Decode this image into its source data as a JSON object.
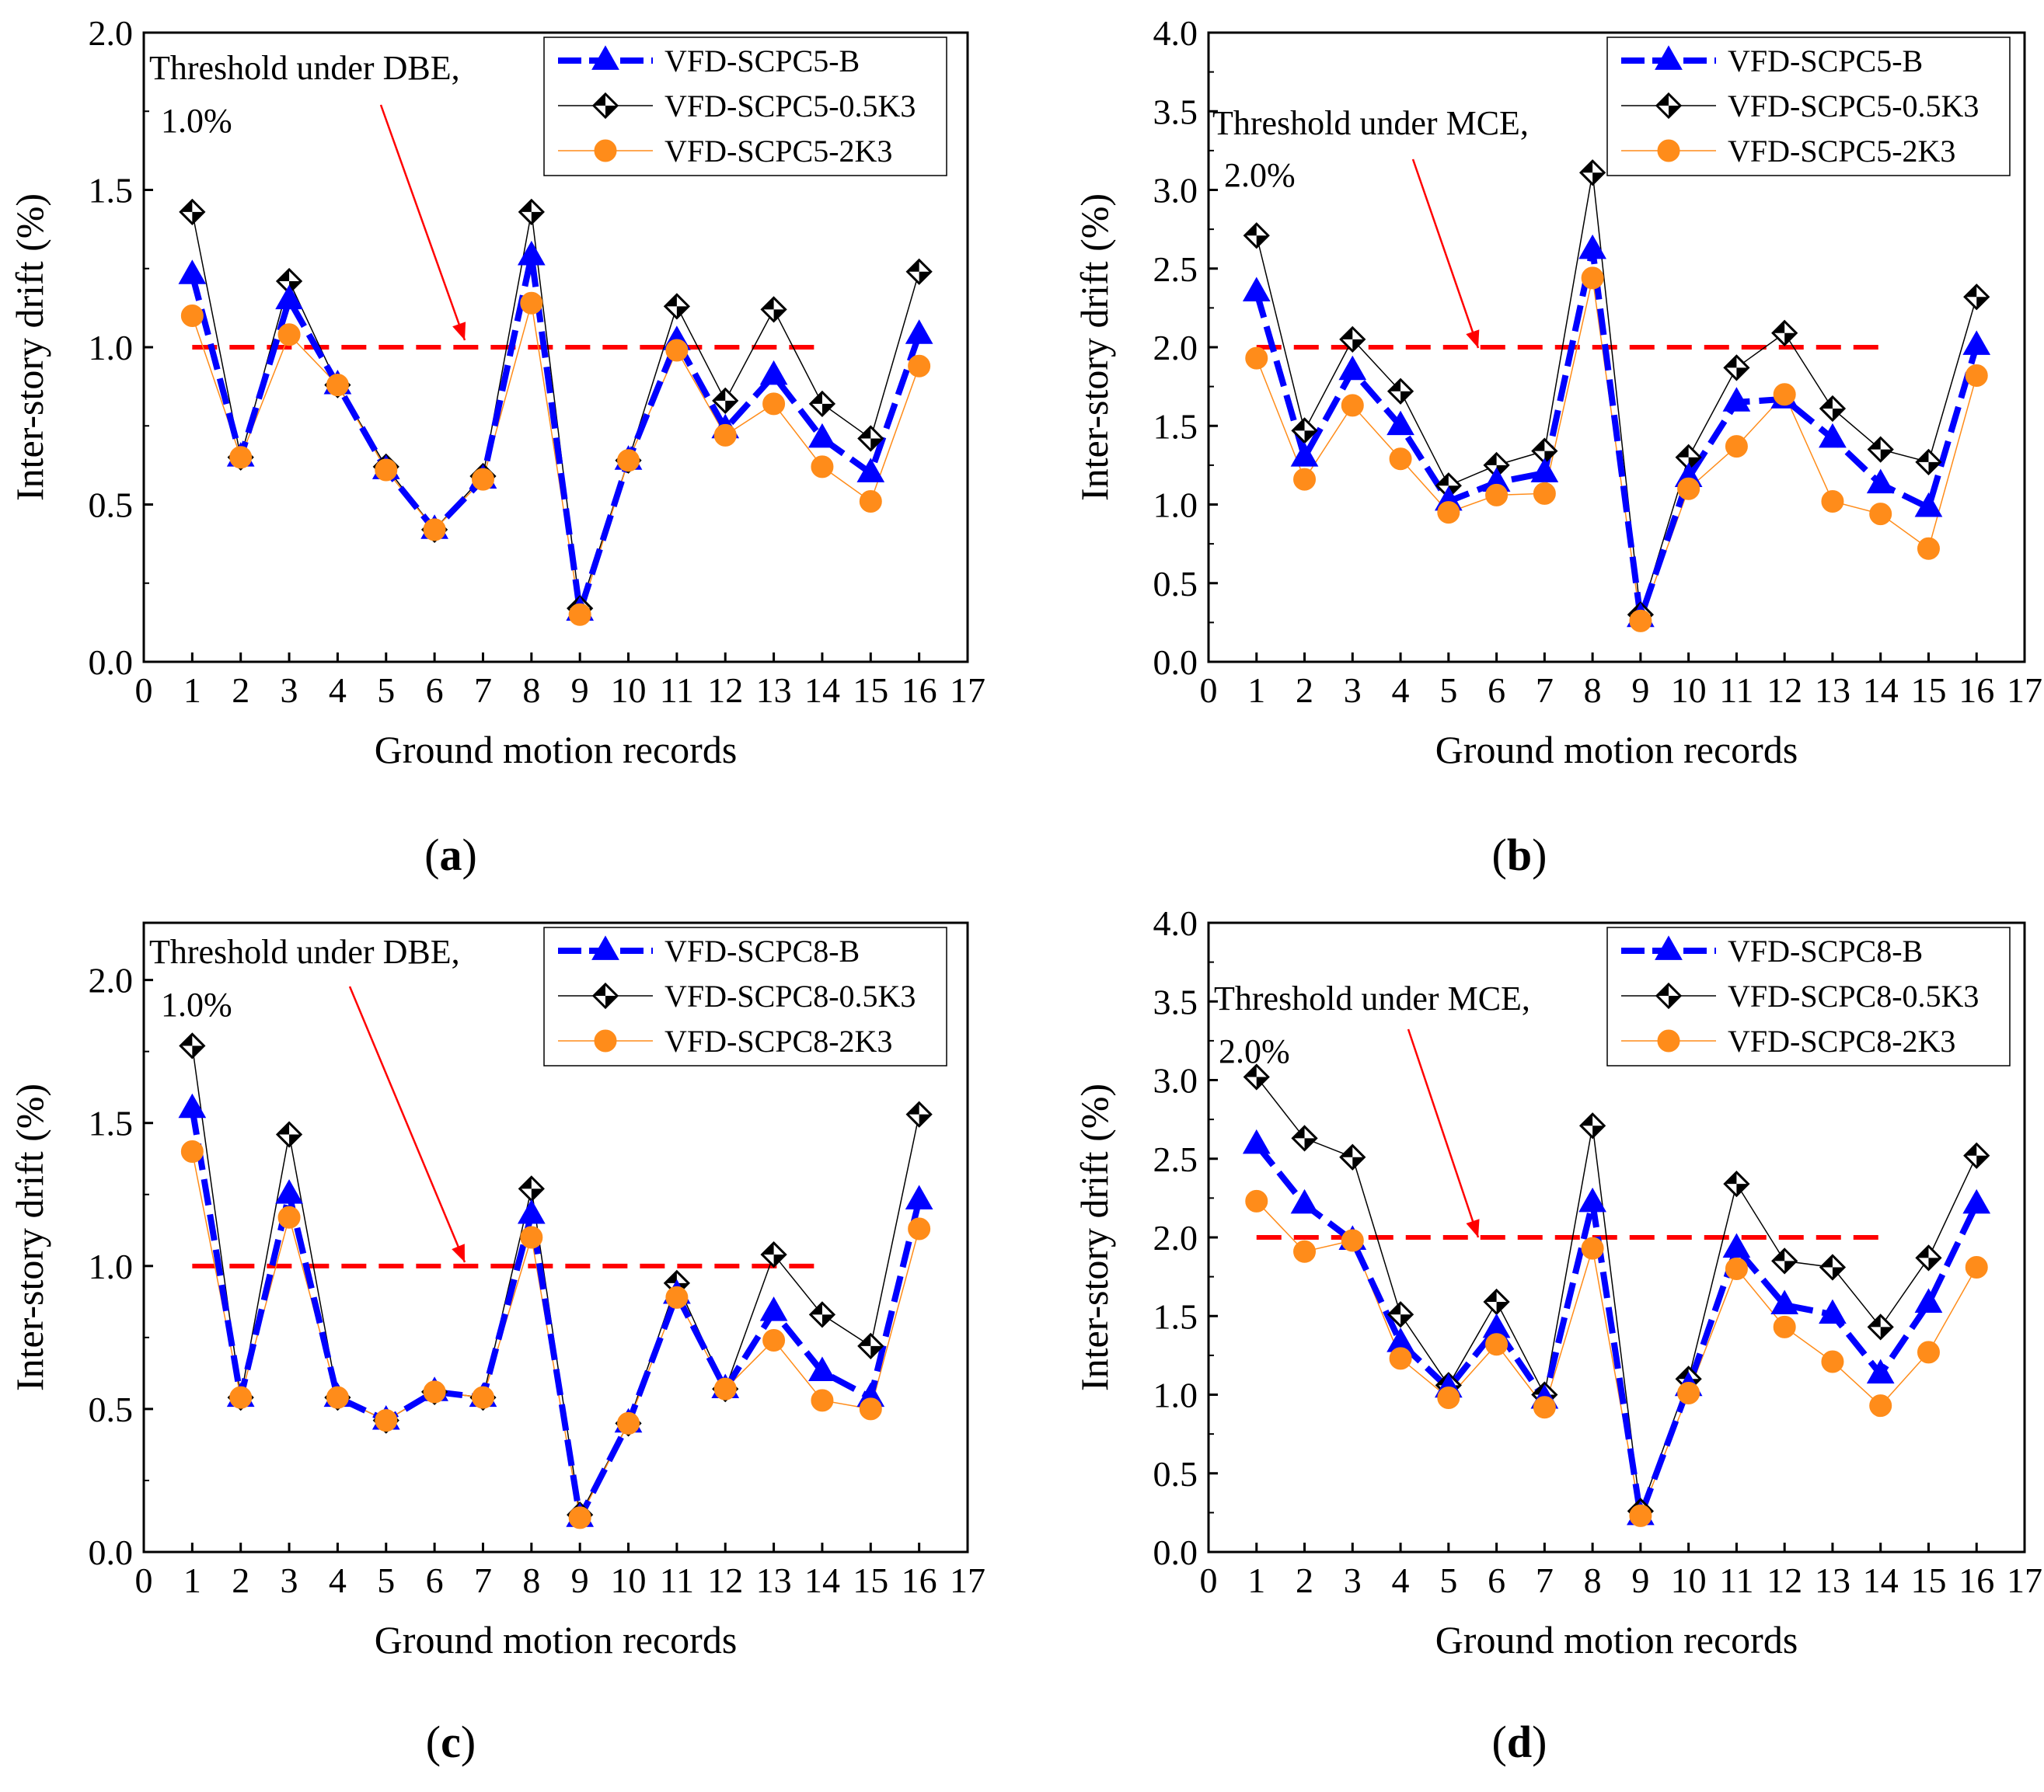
{
  "figure": {
    "panels": [
      {
        "id": "a",
        "label_open": "(",
        "label_letter": "a",
        "label_close": ")"
      },
      {
        "id": "b",
        "label_open": "(",
        "label_letter": "b",
        "label_close": ")"
      },
      {
        "id": "c",
        "label_open": "(",
        "label_letter": "c",
        "label_close": ")"
      },
      {
        "id": "d",
        "label_open": "(",
        "label_letter": "d",
        "label_close": ")"
      }
    ]
  },
  "colors": {
    "series_b": "#0000ff",
    "series_05k3": "#000000",
    "series_2k3": "#ff8c1a",
    "threshold": "#ff0000",
    "arrow": "#ff0000"
  },
  "chart_data": [
    {
      "type": "line",
      "xlabel": "Ground motion records",
      "ylabel": "Inter-story drift (%)",
      "xlim": [
        0,
        17
      ],
      "ylim": [
        0,
        2.0
      ],
      "xticks": [
        "0",
        "1",
        "2",
        "3",
        "4",
        "5",
        "6",
        "7",
        "8",
        "9",
        "10",
        "11",
        "12",
        "13",
        "14",
        "15",
        "16",
        "17"
      ],
      "yticks": [
        "0.0",
        "0.5",
        "1.0",
        "1.5",
        "2.0"
      ],
      "ytick_values": [
        0,
        0.5,
        1.0,
        1.5,
        2.0
      ],
      "x": [
        1,
        2,
        3,
        4,
        5,
        6,
        7,
        8,
        9,
        10,
        11,
        12,
        13,
        14,
        15,
        16
      ],
      "threshold": {
        "value": 1.0,
        "x_range": [
          1,
          14
        ],
        "text_line1": "Threshold under DBE,",
        "text_line2": "1.0%"
      },
      "legend_position": "top-right",
      "series": [
        {
          "name": "VFD-SCPC5-B",
          "marker": "triangle",
          "values": [
            1.23,
            0.65,
            1.15,
            0.88,
            0.61,
            0.42,
            0.58,
            1.29,
            0.16,
            0.64,
            1.02,
            0.74,
            0.91,
            0.71,
            0.6,
            1.04
          ]
        },
        {
          "name": "VFD-SCPC5-0.5K3",
          "marker": "diamond",
          "values": [
            1.43,
            0.65,
            1.21,
            0.88,
            0.62,
            0.42,
            0.59,
            1.43,
            0.17,
            0.64,
            1.13,
            0.83,
            1.12,
            0.82,
            0.71,
            1.24
          ]
        },
        {
          "name": "VFD-SCPC5-2K3",
          "marker": "circle",
          "values": [
            1.1,
            0.65,
            1.04,
            0.88,
            0.61,
            0.42,
            0.58,
            1.14,
            0.15,
            0.64,
            0.99,
            0.72,
            0.82,
            0.62,
            0.51,
            0.94
          ]
        }
      ]
    },
    {
      "type": "line",
      "xlabel": "Ground motion records",
      "ylabel": "Inter-story drift (%)",
      "xlim": [
        0,
        17
      ],
      "ylim": [
        0,
        4.0
      ],
      "xticks": [
        "0",
        "1",
        "2",
        "3",
        "4",
        "5",
        "6",
        "7",
        "8",
        "9",
        "10",
        "11",
        "12",
        "13",
        "14",
        "15",
        "16",
        "17"
      ],
      "yticks": [
        "0.0",
        "0.5",
        "1.0",
        "1.5",
        "2.0",
        "2.5",
        "3.0",
        "3.5",
        "4.0"
      ],
      "ytick_values": [
        0,
        0.5,
        1.0,
        1.5,
        2.0,
        2.5,
        3.0,
        3.5,
        4.0
      ],
      "x": [
        1,
        2,
        3,
        4,
        5,
        6,
        7,
        8,
        9,
        10,
        11,
        12,
        13,
        14,
        15,
        16
      ],
      "threshold": {
        "value": 2.0,
        "x_range": [
          1,
          14
        ],
        "text_line1": "Threshold under MCE,",
        "text_line2": "2.0%"
      },
      "legend_position": "top-right",
      "series": [
        {
          "name": "VFD-SCPC5-B",
          "marker": "triangle",
          "values": [
            2.35,
            1.3,
            1.85,
            1.5,
            1.02,
            1.14,
            1.2,
            2.62,
            0.28,
            1.17,
            1.65,
            1.67,
            1.42,
            1.13,
            0.98,
            2.01
          ]
        },
        {
          "name": "VFD-SCPC5-0.5K3",
          "marker": "diamond",
          "values": [
            2.71,
            1.47,
            2.05,
            1.72,
            1.12,
            1.25,
            1.34,
            3.11,
            0.3,
            1.3,
            1.87,
            2.09,
            1.61,
            1.35,
            1.27,
            2.32
          ]
        },
        {
          "name": "VFD-SCPC5-2K3",
          "marker": "circle",
          "values": [
            1.93,
            1.16,
            1.63,
            1.29,
            0.95,
            1.06,
            1.07,
            2.44,
            0.26,
            1.1,
            1.37,
            1.7,
            1.02,
            0.94,
            0.72,
            1.82
          ]
        }
      ]
    },
    {
      "type": "line",
      "xlabel": "Ground motion records",
      "ylabel": "Inter-story drift (%)",
      "xlim": [
        0,
        17
      ],
      "ylim": [
        0,
        2.2
      ],
      "xticks": [
        "0",
        "1",
        "2",
        "3",
        "4",
        "5",
        "6",
        "7",
        "8",
        "9",
        "10",
        "11",
        "12",
        "13",
        "14",
        "15",
        "16",
        "17"
      ],
      "yticks": [
        "0.0",
        "0.5",
        "1.0",
        "1.5",
        "2.0"
      ],
      "ytick_values": [
        0,
        0.5,
        1.0,
        1.5,
        2.0
      ],
      "x": [
        1,
        2,
        3,
        4,
        5,
        6,
        7,
        8,
        9,
        10,
        11,
        12,
        13,
        14,
        15,
        16
      ],
      "threshold": {
        "value": 1.0,
        "x_range": [
          1,
          14
        ],
        "text_line1": "Threshold under DBE,",
        "text_line2": "1.0%"
      },
      "legend_position": "top-right",
      "series": [
        {
          "name": "VFD-SCPC8-B",
          "marker": "triangle",
          "values": [
            1.55,
            0.54,
            1.25,
            0.54,
            0.46,
            0.56,
            0.54,
            1.18,
            0.12,
            0.45,
            0.9,
            0.57,
            0.84,
            0.63,
            0.54,
            1.23
          ]
        },
        {
          "name": "VFD-SCPC8-0.5K3",
          "marker": "diamond",
          "values": [
            1.77,
            0.54,
            1.46,
            0.54,
            0.46,
            0.56,
            0.54,
            1.27,
            0.13,
            0.45,
            0.94,
            0.57,
            1.04,
            0.83,
            0.72,
            1.53
          ]
        },
        {
          "name": "VFD-SCPC8-2K3",
          "marker": "circle",
          "values": [
            1.4,
            0.54,
            1.17,
            0.54,
            0.46,
            0.56,
            0.54,
            1.1,
            0.12,
            0.45,
            0.89,
            0.57,
            0.74,
            0.53,
            0.5,
            1.13
          ]
        }
      ]
    },
    {
      "type": "line",
      "xlabel": "Ground motion records",
      "ylabel": "Inter-story drift (%)",
      "xlim": [
        0,
        17
      ],
      "ylim": [
        0,
        4.0
      ],
      "xticks": [
        "0",
        "1",
        "2",
        "3",
        "4",
        "5",
        "6",
        "7",
        "8",
        "9",
        "10",
        "11",
        "12",
        "13",
        "14",
        "15",
        "16",
        "17"
      ],
      "yticks": [
        "0.0",
        "0.5",
        "1.0",
        "1.5",
        "2.0",
        "2.5",
        "3.0",
        "3.5",
        "4.0"
      ],
      "ytick_values": [
        0,
        0.5,
        1.0,
        1.5,
        2.0,
        2.5,
        3.0,
        3.5,
        4.0
      ],
      "x": [
        1,
        2,
        3,
        4,
        5,
        6,
        7,
        8,
        9,
        10,
        11,
        12,
        13,
        14,
        15,
        16
      ],
      "threshold": {
        "value": 2.0,
        "x_range": [
          1,
          14
        ],
        "text_line1": "Threshold under MCE,",
        "text_line2": "2.0%"
      },
      "legend_position": "top-right",
      "series": [
        {
          "name": "VFD-SCPC8-B",
          "marker": "triangle",
          "values": [
            2.59,
            2.21,
            1.98,
            1.33,
            1.04,
            1.42,
            0.97,
            2.22,
            0.23,
            1.05,
            1.93,
            1.57,
            1.51,
            1.13,
            1.58,
            2.21
          ]
        },
        {
          "name": "VFD-SCPC8-0.5K3",
          "marker": "diamond",
          "values": [
            3.02,
            2.63,
            2.51,
            1.51,
            1.06,
            1.59,
            1.0,
            2.71,
            0.26,
            1.1,
            2.34,
            1.85,
            1.81,
            1.43,
            1.87,
            2.52
          ]
        },
        {
          "name": "VFD-SCPC8-2K3",
          "marker": "circle",
          "values": [
            2.23,
            1.91,
            1.98,
            1.23,
            0.98,
            1.32,
            0.92,
            1.93,
            0.23,
            1.01,
            1.8,
            1.43,
            1.21,
            0.93,
            1.27,
            1.81
          ]
        }
      ]
    }
  ]
}
